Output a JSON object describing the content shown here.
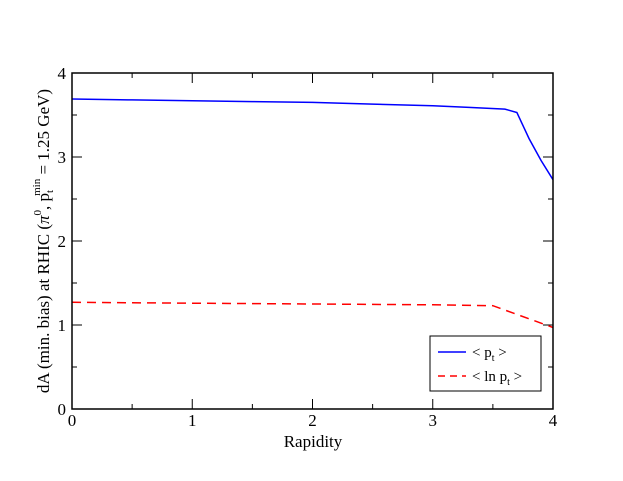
{
  "chart_data": {
    "type": "line",
    "xlabel": "Rapidity",
    "ylabel": {
      "main": "dA (min. bias) at RHIC (",
      "pi": "π",
      "pi_sup": "0",
      "sep": ", p",
      "pt_sub": "t",
      "pt_sup": "min",
      "tail": " = 1.25 GeV)"
    },
    "xlim": [
      0,
      4
    ],
    "ylim": [
      0,
      4
    ],
    "xticks": [
      0,
      1,
      2,
      3,
      4
    ],
    "yticks": [
      0,
      1,
      2,
      3,
      4
    ],
    "grid": false,
    "legend_position": "bottom-right",
    "series": [
      {
        "name": "< p_t >",
        "legend_label": {
          "pre": "< p",
          "sub": "t",
          "post": " >"
        },
        "color": "#0000ff",
        "dash": "solid",
        "x": [
          0,
          0.5,
          1.0,
          1.5,
          2.0,
          2.5,
          3.0,
          3.3,
          3.6,
          3.7,
          3.8,
          3.9,
          4.0
        ],
        "y": [
          3.69,
          3.68,
          3.67,
          3.66,
          3.65,
          3.63,
          3.61,
          3.59,
          3.57,
          3.53,
          3.22,
          2.96,
          2.73
        ]
      },
      {
        "name": "< ln p_t >",
        "legend_label": {
          "pre": "< ln p",
          "sub": "t",
          "post": " >"
        },
        "color": "#ff0000",
        "dash": "dashed",
        "x": [
          0,
          1.0,
          2.0,
          3.0,
          3.5,
          4.0
        ],
        "y": [
          1.27,
          1.26,
          1.25,
          1.24,
          1.23,
          0.97
        ]
      }
    ]
  }
}
